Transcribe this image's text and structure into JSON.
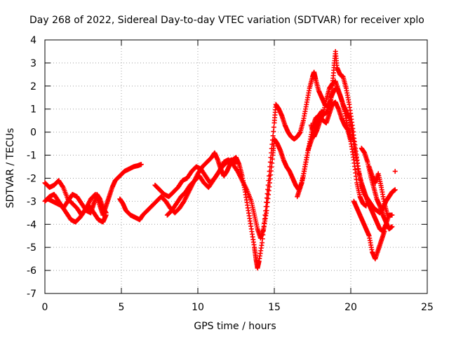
{
  "chart_data": {
    "type": "scatter",
    "title": "Day 268 of 2022, Sidereal Day-to-day VTEC variation (SDTVAR) for receiver xplo",
    "xlabel": "GPS time / hours",
    "ylabel": "SDTVAR / TECUs",
    "xlim": [
      0,
      25
    ],
    "ylim": [
      -7,
      4
    ],
    "xticks": [
      0,
      5,
      10,
      15,
      20,
      25
    ],
    "yticks": [
      -7,
      -6,
      -5,
      -4,
      -3,
      -2,
      -1,
      0,
      1,
      2,
      3,
      4
    ],
    "grid": true,
    "marker": "+",
    "color": "#ff0000",
    "series": [
      {
        "values_xy": [
          [
            0.0,
            -2.2
          ],
          [
            0.3,
            -2.4
          ],
          [
            0.6,
            -2.3
          ],
          [
            0.9,
            -2.1
          ],
          [
            1.2,
            -2.4
          ],
          [
            1.5,
            -2.9
          ],
          [
            1.8,
            -3.1
          ],
          [
            2.1,
            -3.3
          ],
          [
            2.4,
            -3.6
          ],
          [
            2.7,
            -3.3
          ],
          [
            3.0,
            -2.9
          ],
          [
            3.3,
            -2.7
          ],
          [
            3.6,
            -3.2
          ],
          [
            3.8,
            -3.6
          ],
          [
            4.0,
            -3.2
          ],
          [
            4.2,
            -2.8
          ],
          [
            4.4,
            -2.4
          ],
          [
            4.6,
            -2.1
          ],
          [
            4.9,
            -1.9
          ],
          [
            5.2,
            -1.7
          ],
          [
            5.5,
            -1.6
          ],
          [
            5.8,
            -1.5
          ],
          [
            6.1,
            -1.45
          ],
          [
            6.3,
            -1.4
          ]
        ]
      },
      {
        "values_xy": [
          [
            0.0,
            -3.0
          ],
          [
            0.3,
            -2.8
          ],
          [
            0.6,
            -2.7
          ],
          [
            0.9,
            -3.0
          ],
          [
            1.2,
            -3.3
          ],
          [
            1.5,
            -3.0
          ],
          [
            1.8,
            -2.7
          ],
          [
            2.1,
            -2.8
          ],
          [
            2.4,
            -3.1
          ],
          [
            2.7,
            -3.4
          ],
          [
            3.0,
            -3.5
          ],
          [
            3.2,
            -3.1
          ],
          [
            3.4,
            -2.7
          ],
          [
            3.6,
            -2.9
          ],
          [
            3.8,
            -3.3
          ],
          [
            4.0,
            -3.5
          ]
        ]
      },
      {
        "values_xy": [
          [
            0.2,
            -2.9
          ],
          [
            0.5,
            -3.0
          ],
          [
            0.8,
            -3.1
          ],
          [
            1.1,
            -3.2
          ],
          [
            1.4,
            -3.5
          ],
          [
            1.7,
            -3.8
          ],
          [
            2.0,
            -3.9
          ],
          [
            2.3,
            -3.7
          ],
          [
            2.6,
            -3.4
          ],
          [
            2.9,
            -3.2
          ],
          [
            3.2,
            -3.5
          ],
          [
            3.5,
            -3.8
          ],
          [
            3.8,
            -3.9
          ],
          [
            4.0,
            -3.6
          ]
        ]
      },
      {
        "values_xy": [
          [
            4.9,
            -2.9
          ],
          [
            5.1,
            -3.1
          ],
          [
            5.3,
            -3.4
          ],
          [
            5.6,
            -3.6
          ],
          [
            5.9,
            -3.7
          ],
          [
            6.2,
            -3.8
          ],
          [
            6.4,
            -3.6
          ],
          [
            6.7,
            -3.4
          ],
          [
            7.0,
            -3.2
          ],
          [
            7.3,
            -3.0
          ],
          [
            7.6,
            -2.8
          ],
          [
            7.9,
            -3.0
          ],
          [
            8.2,
            -3.3
          ],
          [
            8.5,
            -3.5
          ],
          [
            8.8,
            -3.3
          ],
          [
            9.1,
            -3.0
          ],
          [
            9.4,
            -2.6
          ],
          [
            9.7,
            -2.2
          ],
          [
            10.0,
            -1.8
          ],
          [
            10.3,
            -1.5
          ],
          [
            10.6,
            -1.3
          ],
          [
            10.9,
            -1.1
          ],
          [
            11.1,
            -0.9
          ],
          [
            11.3,
            -1.2
          ],
          [
            11.5,
            -1.6
          ],
          [
            11.7,
            -1.9
          ],
          [
            11.9,
            -1.7
          ],
          [
            12.1,
            -1.4
          ],
          [
            12.3,
            -1.2
          ],
          [
            12.5,
            -1.1
          ],
          [
            12.7,
            -1.4
          ],
          [
            12.9,
            -1.9
          ],
          [
            13.1,
            -2.6
          ],
          [
            13.3,
            -3.4
          ],
          [
            13.5,
            -4.2
          ],
          [
            13.7,
            -5.0
          ],
          [
            13.8,
            -5.5
          ],
          [
            13.9,
            -5.9
          ],
          [
            14.0,
            -5.6
          ],
          [
            14.2,
            -4.8
          ],
          [
            14.4,
            -3.6
          ],
          [
            14.6,
            -2.3
          ],
          [
            14.8,
            -0.9
          ],
          [
            15.0,
            0.4
          ],
          [
            15.1,
            1.2
          ],
          [
            15.3,
            1.0
          ],
          [
            15.5,
            0.7
          ],
          [
            15.7,
            0.3
          ],
          [
            15.9,
            0.0
          ],
          [
            16.1,
            -0.2
          ],
          [
            16.3,
            -0.3
          ],
          [
            16.5,
            -0.2
          ],
          [
            16.7,
            0.0
          ],
          [
            16.9,
            0.5
          ],
          [
            17.1,
            1.2
          ],
          [
            17.3,
            1.9
          ],
          [
            17.5,
            2.4
          ],
          [
            17.6,
            2.6
          ],
          [
            17.7,
            2.3
          ],
          [
            17.9,
            1.8
          ],
          [
            18.1,
            1.5
          ],
          [
            18.3,
            1.2
          ],
          [
            18.5,
            1.1
          ],
          [
            18.7,
            1.4
          ],
          [
            18.8,
            2.0
          ],
          [
            18.9,
            2.8
          ],
          [
            19.0,
            3.5
          ],
          [
            19.1,
            2.8
          ],
          [
            19.3,
            2.5
          ],
          [
            19.5,
            2.4
          ],
          [
            19.7,
            1.9
          ],
          [
            19.9,
            1.2
          ],
          [
            20.1,
            0.3
          ],
          [
            20.3,
            -0.7
          ],
          [
            20.5,
            -1.6
          ],
          [
            20.7,
            -2.3
          ],
          [
            20.9,
            -2.7
          ],
          [
            21.1,
            -2.9
          ],
          [
            21.3,
            -3.1
          ],
          [
            21.5,
            -3.3
          ],
          [
            21.7,
            -3.4
          ],
          [
            21.9,
            -3.5
          ],
          [
            22.1,
            -3.3
          ],
          [
            22.3,
            -3.0
          ],
          [
            22.5,
            -2.8
          ],
          [
            22.7,
            -2.6
          ],
          [
            22.9,
            -2.5
          ]
        ]
      },
      {
        "values_xy": [
          [
            7.2,
            -2.3
          ],
          [
            7.5,
            -2.5
          ],
          [
            7.8,
            -2.7
          ],
          [
            8.1,
            -2.8
          ],
          [
            8.4,
            -2.6
          ],
          [
            8.7,
            -2.4
          ],
          [
            9.0,
            -2.1
          ],
          [
            9.3,
            -2.0
          ],
          [
            9.6,
            -1.7
          ],
          [
            9.9,
            -1.5
          ],
          [
            10.2,
            -1.6
          ],
          [
            10.5,
            -1.9
          ],
          [
            10.8,
            -2.2
          ],
          [
            11.1,
            -2.0
          ],
          [
            11.4,
            -1.7
          ],
          [
            11.7,
            -1.3
          ],
          [
            12.0,
            -1.2
          ],
          [
            12.3,
            -1.4
          ],
          [
            12.6,
            -1.7
          ],
          [
            12.9,
            -2.1
          ],
          [
            13.2,
            -2.5
          ],
          [
            13.5,
            -3.0
          ],
          [
            13.7,
            -3.6
          ],
          [
            13.9,
            -4.2
          ],
          [
            14.1,
            -4.6
          ],
          [
            14.3,
            -4.2
          ],
          [
            14.5,
            -3.4
          ],
          [
            14.7,
            -2.2
          ],
          [
            14.9,
            -1.0
          ],
          [
            15.0,
            -0.3
          ],
          [
            15.2,
            -0.5
          ],
          [
            15.4,
            -0.8
          ],
          [
            15.6,
            -1.2
          ],
          [
            15.8,
            -1.5
          ],
          [
            16.0,
            -1.7
          ],
          [
            16.2,
            -2.0
          ],
          [
            16.4,
            -2.3
          ],
          [
            16.6,
            -2.5
          ],
          [
            16.8,
            -2.2
          ],
          [
            17.0,
            -1.5
          ],
          [
            17.2,
            -0.8
          ],
          [
            17.4,
            -0.4
          ],
          [
            17.6,
            0.0
          ],
          [
            17.8,
            0.4
          ],
          [
            18.0,
            0.6
          ],
          [
            18.2,
            0.5
          ],
          [
            18.4,
            0.4
          ],
          [
            18.6,
            0.8
          ],
          [
            18.8,
            1.2
          ],
          [
            19.0,
            1.3
          ],
          [
            19.2,
            1.0
          ],
          [
            19.4,
            0.6
          ],
          [
            19.6,
            0.3
          ],
          [
            19.8,
            0.1
          ],
          [
            20.0,
            -0.4
          ],
          [
            20.2,
            -1.2
          ],
          [
            20.4,
            -2.2
          ],
          [
            20.6,
            -2.8
          ],
          [
            20.8,
            -3.1
          ],
          [
            21.0,
            -3.2
          ]
        ]
      },
      {
        "values_xy": [
          [
            8.0,
            -3.6
          ],
          [
            8.3,
            -3.4
          ],
          [
            8.6,
            -3.1
          ],
          [
            8.9,
            -2.8
          ],
          [
            9.2,
            -2.6
          ],
          [
            9.5,
            -2.3
          ],
          [
            9.8,
            -2.1
          ],
          [
            10.1,
            -1.9
          ],
          [
            10.4,
            -2.2
          ],
          [
            10.7,
            -2.4
          ],
          [
            11.0,
            -2.1
          ],
          [
            11.3,
            -1.8
          ],
          [
            11.6,
            -1.5
          ],
          [
            11.9,
            -1.3
          ],
          [
            12.2,
            -1.2
          ],
          [
            12.5,
            -1.3
          ]
        ]
      },
      {
        "values_xy": [
          [
            16.5,
            -2.8
          ],
          [
            16.7,
            -2.4
          ],
          [
            16.9,
            -1.9
          ],
          [
            17.1,
            -1.2
          ],
          [
            17.3,
            -0.5
          ],
          [
            17.5,
            0.2
          ],
          [
            17.7,
            0.6
          ],
          [
            17.9,
            0.7
          ],
          [
            18.1,
            0.9
          ],
          [
            18.3,
            0.8
          ],
          [
            18.5,
            0.9
          ],
          [
            18.7,
            1.5
          ],
          [
            18.9,
            1.8
          ],
          [
            19.1,
            1.9
          ],
          [
            19.3,
            1.6
          ],
          [
            19.5,
            1.2
          ],
          [
            19.7,
            0.9
          ],
          [
            19.9,
            0.6
          ],
          [
            20.1,
            0.0
          ],
          [
            20.3,
            -0.9
          ],
          [
            20.5,
            -1.7
          ],
          [
            20.7,
            -2.2
          ],
          [
            20.9,
            -2.6
          ],
          [
            21.1,
            -3.0
          ],
          [
            21.3,
            -3.3
          ],
          [
            21.5,
            -3.6
          ],
          [
            21.7,
            -3.9
          ],
          [
            21.9,
            -4.2
          ],
          [
            22.1,
            -4.3
          ],
          [
            22.3,
            -4.0
          ],
          [
            22.5,
            -3.6
          ],
          [
            22.7,
            -3.6
          ]
        ]
      },
      {
        "values_xy": [
          [
            20.7,
            -0.7
          ],
          [
            20.9,
            -0.9
          ],
          [
            21.1,
            -1.3
          ],
          [
            21.3,
            -1.9
          ],
          [
            21.5,
            -2.4
          ],
          [
            21.7,
            -2.9
          ],
          [
            21.9,
            -3.2
          ],
          [
            22.1,
            -3.6
          ],
          [
            22.3,
            -3.9
          ],
          [
            22.5,
            -4.2
          ],
          [
            22.7,
            -4.1
          ]
        ]
      },
      {
        "values_xy": [
          [
            21.2,
            -1.5
          ],
          [
            21.4,
            -1.9
          ],
          [
            21.6,
            -2.2
          ],
          [
            21.8,
            -1.8
          ],
          [
            22.0,
            -2.4
          ],
          [
            22.2,
            -3.1
          ],
          [
            22.4,
            -3.6
          ]
        ]
      },
      {
        "values_xy": [
          [
            20.2,
            -3.0
          ],
          [
            20.4,
            -3.3
          ],
          [
            20.6,
            -3.6
          ],
          [
            20.8,
            -3.9
          ],
          [
            21.0,
            -4.2
          ],
          [
            21.2,
            -4.5
          ],
          [
            21.4,
            -5.2
          ],
          [
            21.6,
            -5.5
          ],
          [
            21.8,
            -5.1
          ],
          [
            22.0,
            -4.7
          ],
          [
            22.2,
            -4.3
          ]
        ]
      },
      {
        "values_xy": [
          [
            17.4,
            0.3
          ],
          [
            17.6,
            -0.2
          ],
          [
            17.8,
            0.1
          ],
          [
            18.0,
            0.5
          ],
          [
            18.2,
            0.8
          ],
          [
            18.4,
            1.4
          ],
          [
            18.6,
            1.9
          ],
          [
            18.8,
            2.1
          ],
          [
            19.0,
            2.2
          ],
          [
            19.2,
            1.8
          ],
          [
            19.4,
            1.4
          ],
          [
            19.6,
            0.9
          ],
          [
            19.8,
            0.2
          ],
          [
            20.0,
            -0.3
          ]
        ]
      },
      {
        "values_xy": [
          [
            22.9,
            -1.7
          ]
        ]
      }
    ]
  }
}
